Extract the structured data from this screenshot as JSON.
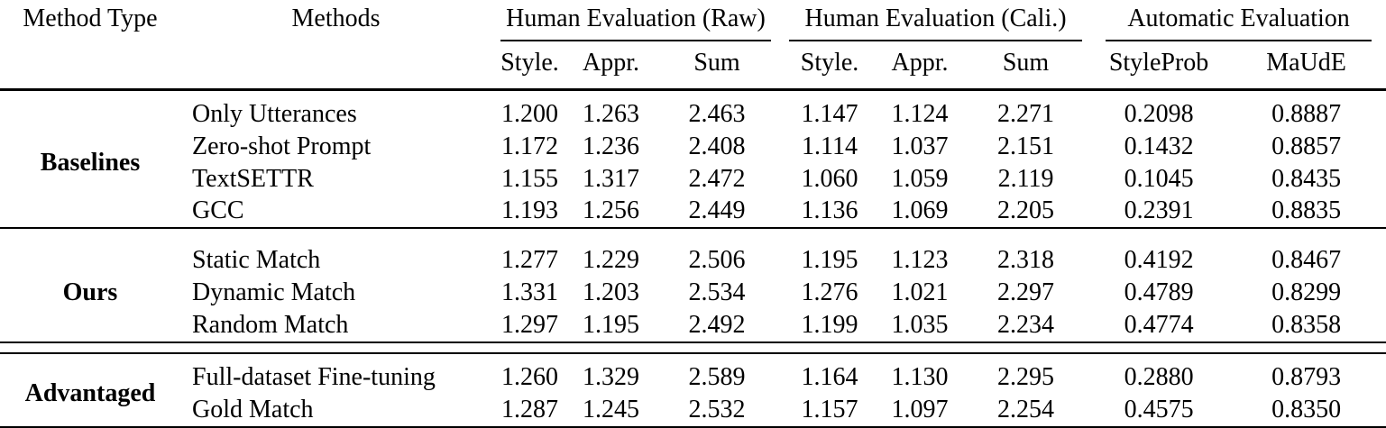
{
  "table": {
    "header": {
      "method_type": "Method Type",
      "methods": "Methods",
      "groups": [
        {
          "label": "Human Evaluation (Raw)",
          "subs": [
            "Style.",
            "Appr.",
            "Sum"
          ]
        },
        {
          "label": "Human Evaluation (Cali.)",
          "subs": [
            "Style.",
            "Appr.",
            "Sum"
          ]
        },
        {
          "label": "Automatic Evaluation",
          "subs": [
            "StyleProb",
            "MaUdE"
          ]
        }
      ]
    },
    "sections": [
      {
        "method_type": "Baselines",
        "separator_after": "single",
        "rows": [
          {
            "method": "Only Utterances",
            "values": [
              "1.200",
              "1.263",
              "2.463",
              "1.147",
              "1.124",
              "2.271",
              "0.2098",
              "0.8887"
            ]
          },
          {
            "method": "Zero-shot Prompt",
            "values": [
              "1.172",
              "1.236",
              "2.408",
              "1.114",
              "1.037",
              "2.151",
              "0.1432",
              "0.8857"
            ]
          },
          {
            "method": "TextSETTR",
            "values": [
              "1.155",
              "1.317",
              "2.472",
              "1.060",
              "1.059",
              "2.119",
              "0.1045",
              "0.8435"
            ]
          },
          {
            "method": "GCC",
            "values": [
              "1.193",
              "1.256",
              "2.449",
              "1.136",
              "1.069",
              "2.205",
              "0.2391",
              "0.8835"
            ]
          }
        ]
      },
      {
        "method_type": "Ours",
        "separator_after": "double",
        "rows": [
          {
            "method": "Static Match",
            "values": [
              "1.277",
              "1.229",
              "2.506",
              "1.195",
              "1.123",
              "2.318",
              "0.4192",
              "0.8467"
            ]
          },
          {
            "method": "Dynamic Match",
            "values": [
              "1.331",
              "1.203",
              "2.534",
              "1.276",
              "1.021",
              "2.297",
              "0.4789",
              "0.8299"
            ]
          },
          {
            "method": "Random Match",
            "values": [
              "1.297",
              "1.195",
              "2.492",
              "1.199",
              "1.035",
              "2.234",
              "0.4774",
              "0.8358"
            ]
          }
        ]
      },
      {
        "method_type": "Advantaged",
        "separator_after": "none",
        "rows": [
          {
            "method": "Full-dataset Fine-tuning",
            "values": [
              "1.260",
              "1.329",
              "2.589",
              "1.164",
              "1.130",
              "2.295",
              "0.2880",
              "0.8793"
            ]
          },
          {
            "method": "Gold Match",
            "values": [
              "1.287",
              "1.245",
              "2.532",
              "1.157",
              "1.097",
              "2.254",
              "0.4575",
              "0.8350"
            ]
          }
        ]
      }
    ],
    "colors": {
      "text": "#000000",
      "background": "#ffffff",
      "rule": "#000000"
    }
  }
}
